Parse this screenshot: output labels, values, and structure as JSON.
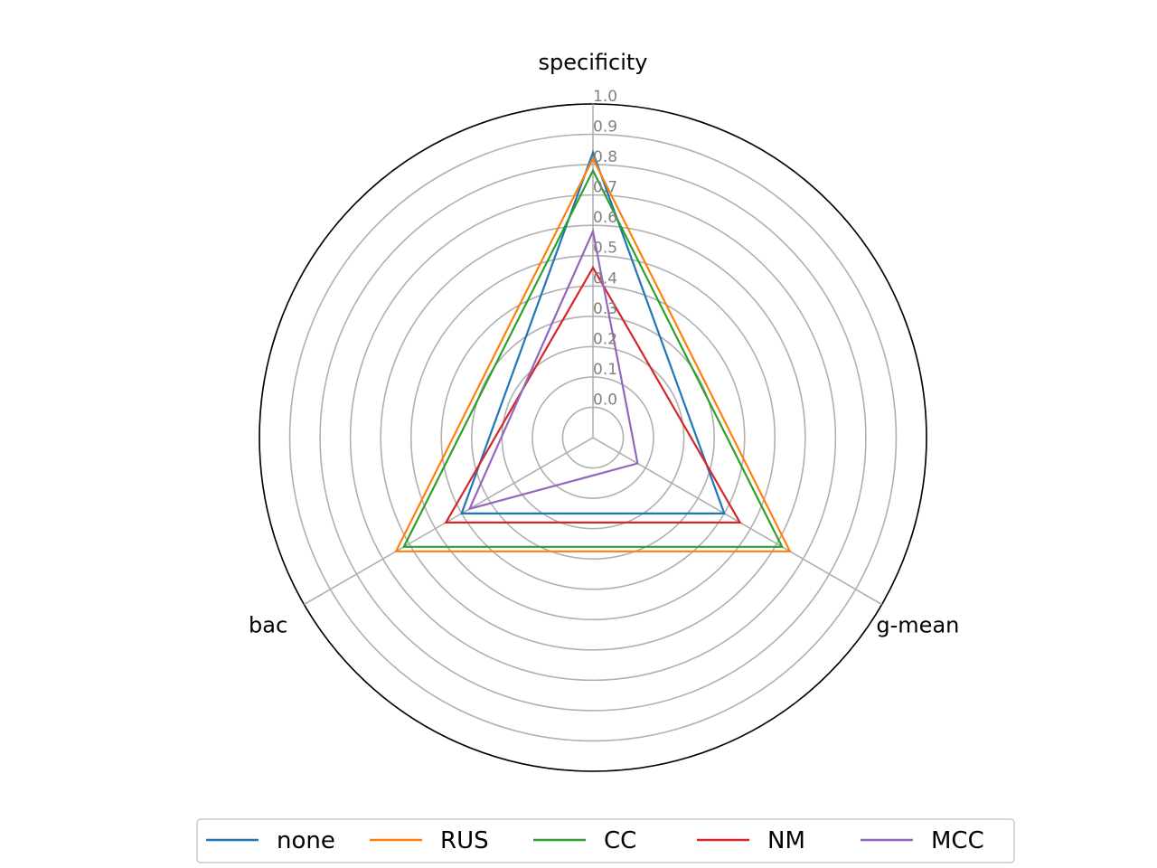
{
  "chart_data": {
    "type": "radar",
    "axes": [
      "specificity",
      "g-mean",
      "bac"
    ],
    "rlim": [
      -0.1,
      1.0
    ],
    "rticks": [
      "0.0",
      "0.1",
      "0.2",
      "0.3",
      "0.4",
      "0.5",
      "0.6",
      "0.7",
      "0.8",
      "0.9",
      "1.0"
    ],
    "grid": true,
    "legend_position": "bottom",
    "series": [
      {
        "name": "none",
        "color": "#1f77b4",
        "values": [
          0.84,
          0.4,
          0.4
        ]
      },
      {
        "name": "RUS",
        "color": "#ff7f0e",
        "values": [
          0.82,
          0.65,
          0.65
        ]
      },
      {
        "name": "CC",
        "color": "#2ca02c",
        "values": [
          0.78,
          0.62,
          0.62
        ]
      },
      {
        "name": "NM",
        "color": "#d62728",
        "values": [
          0.46,
          0.46,
          0.46
        ]
      },
      {
        "name": "MCC",
        "color": "#9467bd",
        "values": [
          0.58,
          0.07,
          0.37
        ]
      }
    ]
  }
}
